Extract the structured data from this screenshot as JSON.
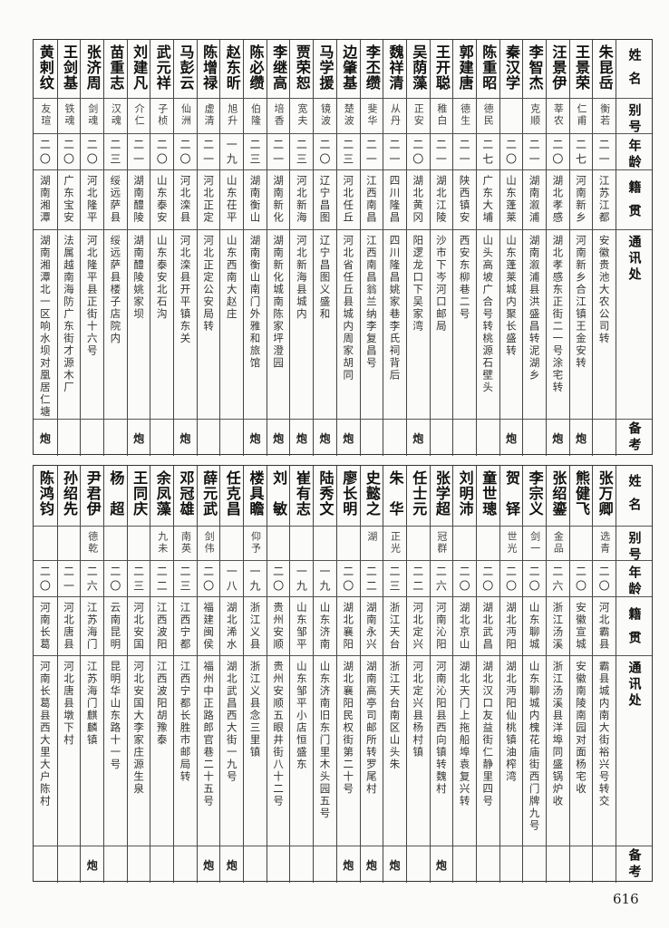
{
  "headers": {
    "name": "姓名",
    "alias": "别号",
    "age": "年龄",
    "native": "籍贯",
    "address": "通讯处",
    "remark": "备考"
  },
  "top": {
    "people": [
      {
        "name": "朱昆岳",
        "alias": "衡若",
        "age": "二一",
        "native": "江苏江都",
        "address": "安徽贵池大农公司转",
        "remark": ""
      },
      {
        "name": "王景荣",
        "alias": "仁甫",
        "age": "二七",
        "native": "河南新乡",
        "address": "河南新乡合江镇王金安转",
        "remark": "炮"
      },
      {
        "name": "汪景伊",
        "alias": "莘农",
        "age": "二〇",
        "native": "湖北孝感",
        "address": "湖北孝感东正街二一号涂宅转",
        "remark": "炮"
      },
      {
        "name": "李智杰",
        "alias": "克顺",
        "age": "二一",
        "native": "湖南溆浦",
        "address": "湖南溆浦县洪盛昌转泥湖乡",
        "remark": ""
      },
      {
        "name": "秦汉学",
        "alias": "",
        "age": "二〇",
        "native": "山东蓬莱",
        "address": "山东蓬莱城内聚长盛转",
        "remark": "炮"
      },
      {
        "name": "陈重昭",
        "alias": "德民",
        "age": "二七",
        "native": "广东大埔",
        "address": "山头高坡广合号转桃源石壁头",
        "remark": ""
      },
      {
        "name": "郭建唐",
        "alias": "德生",
        "age": "二一",
        "native": "陕西镇安",
        "address": "西安东柳巷二号",
        "remark": ""
      },
      {
        "name": "王开聪",
        "alias": "稚白",
        "age": "二一",
        "native": "湖北江陵",
        "address": "沙市下岑河口邮局",
        "remark": ""
      },
      {
        "name": "吴荫藻",
        "alias": "正安",
        "age": "二〇",
        "native": "湖北黄冈",
        "address": "阳逻龙口下吴家湾",
        "remark": "炮"
      },
      {
        "name": "魏祥清",
        "alias": "从丹",
        "age": "二一",
        "native": "四川隆昌",
        "address": "四川隆昌姚家巷李氏祠背后",
        "remark": ""
      },
      {
        "name": "李丕缵",
        "alias": "斐华",
        "age": "二一",
        "native": "江西南昌",
        "address": "江西南昌翁兰纳李复昌号",
        "remark": ""
      },
      {
        "name": "边肇基",
        "alias": "楚波",
        "age": "二三",
        "native": "河北任丘",
        "address": "河北省任丘县城内周家胡同",
        "remark": "炮"
      },
      {
        "name": "马学援",
        "alias": "镜波",
        "age": "二〇",
        "native": "辽宁昌图",
        "address": "辽宁昌图义盛和",
        "remark": "炮"
      },
      {
        "name": "贾荣恕",
        "alias": "宽夫",
        "age": "二三",
        "native": "河北新海",
        "address": "河北新海县城内",
        "remark": "炮"
      },
      {
        "name": "李继高",
        "alias": "培香",
        "age": "二一",
        "native": "湖南新化",
        "address": "湖南新化城南陈家坪澄园",
        "remark": "炮"
      },
      {
        "name": "陈必缵",
        "alias": "伯隆",
        "age": "二三",
        "native": "湖南衡山",
        "address": "湖南衡山南门外雅和旅馆",
        "remark": "炮"
      },
      {
        "name": "赵东昕",
        "alias": "旭升",
        "age": "一九",
        "native": "山东茌平",
        "address": "山东西南大赵庄",
        "remark": ""
      },
      {
        "name": "陈增禄",
        "alias": "虚清",
        "age": "二一",
        "native": "河北正定",
        "address": "河北正定公安局转",
        "remark": ""
      },
      {
        "name": "马彭云",
        "alias": "仙洲",
        "age": "二〇",
        "native": "河北滦县",
        "address": "河北滦县开平镇东关",
        "remark": "炮"
      },
      {
        "name": "武元祥",
        "alias": "子桢",
        "age": "二〇",
        "native": "山东泰安",
        "address": "山东泰安北石沟",
        "remark": ""
      },
      {
        "name": "刘建凡",
        "alias": "介仁",
        "age": "二一",
        "native": "湖南醴陵",
        "address": "湖南醴陵姚家坝",
        "remark": "炮"
      },
      {
        "name": "苗重志",
        "alias": "汉魂",
        "age": "二三",
        "native": "绥远萨县",
        "address": "绥远萨县楼子店院内",
        "remark": ""
      },
      {
        "name": "张济周",
        "alias": "剑魂",
        "age": "二〇",
        "native": "河北隆平",
        "address": "河北隆平县正街十六号",
        "remark": ""
      },
      {
        "name": "王剑基",
        "alias": "铁魂",
        "age": "二〇",
        "native": "广东宝安",
        "address": "法属越南海防广东街才源木厂",
        "remark": ""
      },
      {
        "name": "黄剌纹",
        "alias": "友瑄",
        "age": "二〇",
        "native": "湖南湘潭",
        "address": "湖南湘潭北一区响水坝对凰居仁塘",
        "remark": "炮"
      }
    ]
  },
  "bottom": {
    "people": [
      {
        "name": "张万卿",
        "alias": "选青",
        "age": "二〇",
        "native": "河北霸县",
        "address": "霸县城内南大街裕兴号转交",
        "remark": ""
      },
      {
        "name": "熊健飞",
        "alias": "",
        "age": "二〇",
        "native": "安徽宣城",
        "address": "安徽南陵南园对面杨宅收",
        "remark": ""
      },
      {
        "name": "张绍鎏",
        "alias": "金品",
        "age": "二六",
        "native": "浙江汤溪",
        "address": "浙江汤溪县洋埠同盛锅炉收",
        "remark": ""
      },
      {
        "name": "李宗义",
        "alias": "剑一",
        "age": "二〇",
        "native": "山东聊城",
        "address": "山东聊城内槐花庙街西门牌九号",
        "remark": ""
      },
      {
        "name": "贺　铎",
        "alias": "世光",
        "age": "二〇",
        "native": "湖北沔阳",
        "address": "湖北沔阳仙桃镇油榨湾",
        "remark": ""
      },
      {
        "name": "童世璁",
        "alias": "",
        "age": "二〇",
        "native": "湖北武昌",
        "address": "湖北汉口友益街仁静里四号",
        "remark": ""
      },
      {
        "name": "刘明沛",
        "alias": "",
        "age": "二〇",
        "native": "湖北京山",
        "address": "湖北天门上拖船埠袁复兴转",
        "remark": ""
      },
      {
        "name": "张学超",
        "alias": "冠群",
        "age": "二六",
        "native": "河南沁阳",
        "address": "河南沁阳县西向镇转魏村",
        "remark": "炮"
      },
      {
        "name": "任士元",
        "alias": "",
        "age": "二二",
        "native": "河北定兴",
        "address": "河北定兴县杨村镇",
        "remark": ""
      },
      {
        "name": "朱　华",
        "alias": "正光",
        "age": "二三",
        "native": "浙江天台",
        "address": "浙江天台南区山头朱",
        "remark": "炮"
      },
      {
        "name": "史懿之",
        "alias": "湖",
        "age": "二二",
        "native": "湖南永兴",
        "address": "湖南高亭司邮所转罗尾村",
        "remark": "炮"
      },
      {
        "name": "廖长明",
        "alias": "",
        "age": "二〇",
        "native": "湖北襄阳",
        "address": "湖北襄阳民权街第二十号",
        "remark": "炮"
      },
      {
        "name": "陆秀文",
        "alias": "",
        "age": "一九",
        "native": "山东济南",
        "address": "山东济南旧东门里木头园五号",
        "remark": ""
      },
      {
        "name": "崔有志",
        "alias": "",
        "age": "一九",
        "native": "山东邹平",
        "address": "山东邹平小店恒盛东",
        "remark": ""
      },
      {
        "name": "刘　敏",
        "alias": "",
        "age": "二〇",
        "native": "贵州安顺",
        "address": "贵州安顺五眼井街八十二号",
        "remark": ""
      },
      {
        "name": "楼具瞻",
        "alias": "仰予",
        "age": "一九",
        "native": "浙江义县",
        "address": "浙江义县念三里镇",
        "remark": ""
      },
      {
        "name": "任克昌",
        "alias": "",
        "age": "一八",
        "native": "湖北浠水",
        "address": "湖北武昌西大街一九号",
        "remark": "炮"
      },
      {
        "name": "薛元武",
        "alias": "剑伟",
        "age": "二〇",
        "native": "福建闽侯",
        "address": "福州中正路郎官巷二十五号",
        "remark": "炮"
      },
      {
        "name": "邓冠雄",
        "alias": "南英",
        "age": "二三",
        "native": "江西宁都",
        "address": "江西宁都长胜市邮局转",
        "remark": ""
      },
      {
        "name": "余凤藻",
        "alias": "九未",
        "age": "二二",
        "native": "江西波阳",
        "address": "江西波阳胡豫泰",
        "remark": ""
      },
      {
        "name": "王同庆",
        "alias": "",
        "age": "二三",
        "native": "河北安国",
        "address": "河北安国大李家庄源生泉",
        "remark": ""
      },
      {
        "name": "杨　超",
        "alias": "",
        "age": "二〇",
        "native": "云南昆明",
        "address": "昆明华山东路十一号",
        "remark": ""
      },
      {
        "name": "尹君伊",
        "alias": "德乾",
        "age": "二六",
        "native": "江苏海门",
        "address": "江苏海门麒麟镇",
        "remark": "炮"
      },
      {
        "name": "孙绍先",
        "alias": "",
        "age": "二一",
        "native": "河北唐县",
        "address": "河北唐县墩下村",
        "remark": ""
      },
      {
        "name": "陈鸿钧",
        "alias": "",
        "age": "二〇",
        "native": "河南长葛",
        "address": "河南长葛县西大里大户陈村",
        "remark": ""
      }
    ]
  },
  "page_number": "616"
}
